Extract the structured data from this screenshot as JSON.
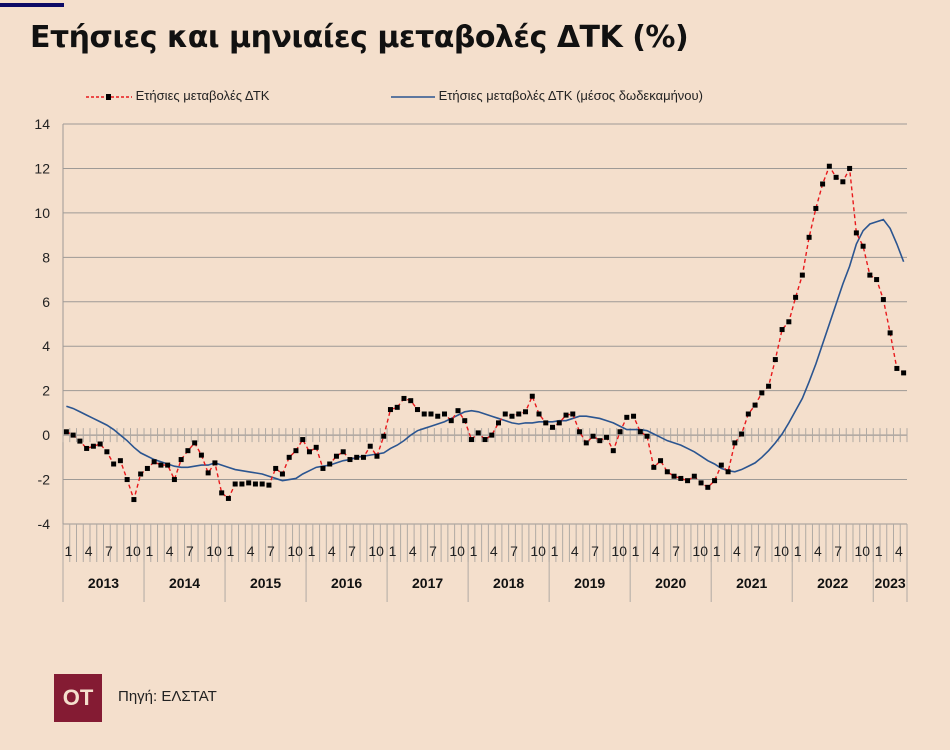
{
  "header": {
    "title": "Ετήσιες και μηνιαίες μεταβολές ΔΤΚ (%)",
    "accent_color": "#0c0a66"
  },
  "footer": {
    "logo_text": "OT",
    "logo_color": "#841b33",
    "source": "Πηγή: ΕΛΣΤΑΤ"
  },
  "chart_data": {
    "type": "line",
    "title": "Ετήσιες και μηνιαίες μεταβολές ΔΤΚ (%)",
    "xlabel": "",
    "ylabel": "",
    "ylim": [
      -4,
      14
    ],
    "yticks": [
      "14",
      "12",
      "10",
      "8",
      "6",
      "4",
      "2",
      "0",
      "-2",
      "-4"
    ],
    "ytick_values": [
      14,
      12,
      10,
      8,
      6,
      4,
      2,
      0,
      -2,
      -4
    ],
    "grid": true,
    "legend_position": "top",
    "years": [
      "2013",
      "2014",
      "2015",
      "2016",
      "2017",
      "2018",
      "2019",
      "2020",
      "2021",
      "2022",
      "2023"
    ],
    "month_tick_labels": [
      "1",
      "4",
      "7",
      "10"
    ],
    "months_in_last_year": 5,
    "series": [
      {
        "name": "Ετήσιες μεταβολές ΔΤΚ",
        "color": "#e8191c",
        "marker_color": "#000000",
        "style": "dashed-markers",
        "values": [
          0.15,
          0.0,
          -0.27,
          -0.6,
          -0.5,
          -0.4,
          -0.75,
          -1.3,
          -1.15,
          -2.0,
          -2.9,
          -1.75,
          -1.5,
          -1.2,
          -1.35,
          -1.35,
          -2.0,
          -1.1,
          -0.7,
          -0.35,
          -0.9,
          -1.7,
          -1.25,
          -2.6,
          -2.85,
          -2.2,
          -2.2,
          -2.15,
          -2.2,
          -2.2,
          -2.25,
          -1.5,
          -1.75,
          -1.0,
          -0.7,
          -0.2,
          -0.75,
          -0.55,
          -1.5,
          -1.3,
          -0.95,
          -0.75,
          -1.1,
          -1.0,
          -1.0,
          -0.5,
          -0.95,
          -0.05,
          1.15,
          1.25,
          1.65,
          1.55,
          1.15,
          0.95,
          0.95,
          0.85,
          0.95,
          0.65,
          1.1,
          0.65,
          -0.2,
          0.1,
          -0.2,
          0.0,
          0.55,
          0.95,
          0.85,
          0.95,
          1.05,
          1.75,
          0.95,
          0.55,
          0.35,
          0.55,
          0.9,
          0.95,
          0.15,
          -0.35,
          -0.05,
          -0.25,
          -0.1,
          -0.7,
          0.15,
          0.8,
          0.85,
          0.15,
          -0.05,
          -1.45,
          -1.15,
          -1.65,
          -1.85,
          -1.95,
          -2.05,
          -1.85,
          -2.15,
          -2.35,
          -2.05,
          -1.35,
          -1.65,
          -0.35,
          0.05,
          0.95,
          1.35,
          1.9,
          2.2,
          3.4,
          4.75,
          5.1,
          6.2,
          7.2,
          8.9,
          10.2,
          11.3,
          12.1,
          11.6,
          11.4,
          12.0,
          9.1,
          8.5,
          7.2,
          7.0,
          6.1,
          4.6,
          3.0,
          2.8
        ]
      },
      {
        "name": "Ετήσιες μεταβολές ΔΤΚ (μέσος δωδεκαμήνου)",
        "color": "#2b5590",
        "style": "solid",
        "values": [
          1.3,
          1.2,
          1.05,
          0.9,
          0.75,
          0.6,
          0.45,
          0.25,
          0.0,
          -0.25,
          -0.55,
          -0.8,
          -0.95,
          -1.1,
          -1.2,
          -1.3,
          -1.4,
          -1.45,
          -1.45,
          -1.4,
          -1.35,
          -1.35,
          -1.25,
          -1.35,
          -1.45,
          -1.55,
          -1.6,
          -1.65,
          -1.7,
          -1.75,
          -1.85,
          -1.95,
          -2.05,
          -2.0,
          -1.95,
          -1.75,
          -1.6,
          -1.45,
          -1.4,
          -1.35,
          -1.25,
          -1.15,
          -1.1,
          -1.0,
          -0.95,
          -0.9,
          -0.85,
          -0.8,
          -0.6,
          -0.45,
          -0.25,
          0.0,
          0.2,
          0.3,
          0.4,
          0.5,
          0.6,
          0.75,
          0.9,
          1.05,
          1.1,
          1.05,
          0.95,
          0.85,
          0.75,
          0.65,
          0.55,
          0.5,
          0.55,
          0.55,
          0.6,
          0.6,
          0.6,
          0.65,
          0.65,
          0.75,
          0.85,
          0.85,
          0.8,
          0.75,
          0.65,
          0.55,
          0.4,
          0.25,
          0.25,
          0.25,
          0.2,
          0.05,
          -0.1,
          -0.25,
          -0.35,
          -0.45,
          -0.6,
          -0.75,
          -0.95,
          -1.15,
          -1.3,
          -1.5,
          -1.6,
          -1.65,
          -1.55,
          -1.4,
          -1.25,
          -1.0,
          -0.7,
          -0.35,
          0.05,
          0.55,
          1.1,
          1.65,
          2.4,
          3.2,
          4.1,
          5.0,
          5.9,
          6.8,
          7.6,
          8.6,
          9.2,
          9.5,
          9.6,
          9.7,
          9.3,
          8.6,
          7.8
        ]
      }
    ]
  }
}
